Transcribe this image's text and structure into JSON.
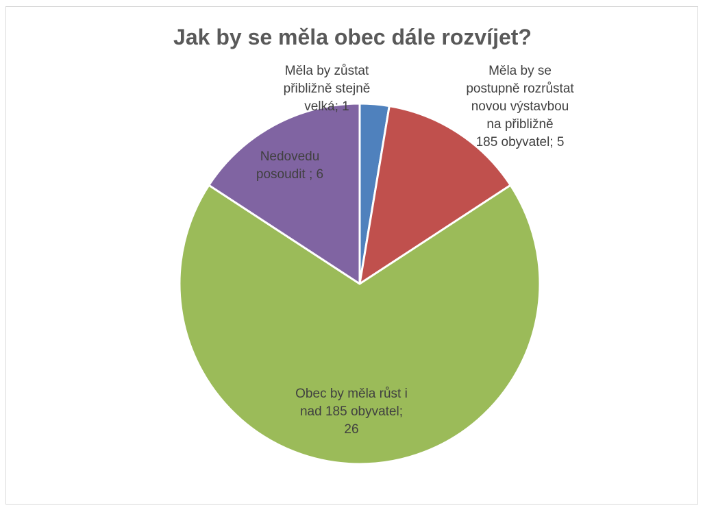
{
  "chart_data": {
    "type": "pie",
    "title": "Jak by se měla obec dále rozvíjet?",
    "categories": [
      "Měla by zůstat přibližně stejně velká",
      "Měla by se postupně rozrůstat novou výstavbou na přibližně 185 obyvatel",
      "Obec by měla růst i nad 185 obyvatel",
      "Nedovedu posoudit"
    ],
    "values": [
      1,
      5,
      26,
      6
    ],
    "colors": [
      "#4f81bd",
      "#c0504d",
      "#9bbb59",
      "#8064a2"
    ],
    "data_labels": [
      [
        "Měla by zůstat",
        "přibližně stejně",
        "velká; 1"
      ],
      [
        "Měla by se",
        "postupně rozrůstat",
        "novou výstavbou",
        "na přibližně",
        "185 obyvatel; 5"
      ],
      [
        "Obec by měla růst i",
        "nad 185 obyvatel;",
        "26"
      ],
      [
        "Nedovedu",
        "posoudit ; 6"
      ]
    ],
    "legend": false
  }
}
